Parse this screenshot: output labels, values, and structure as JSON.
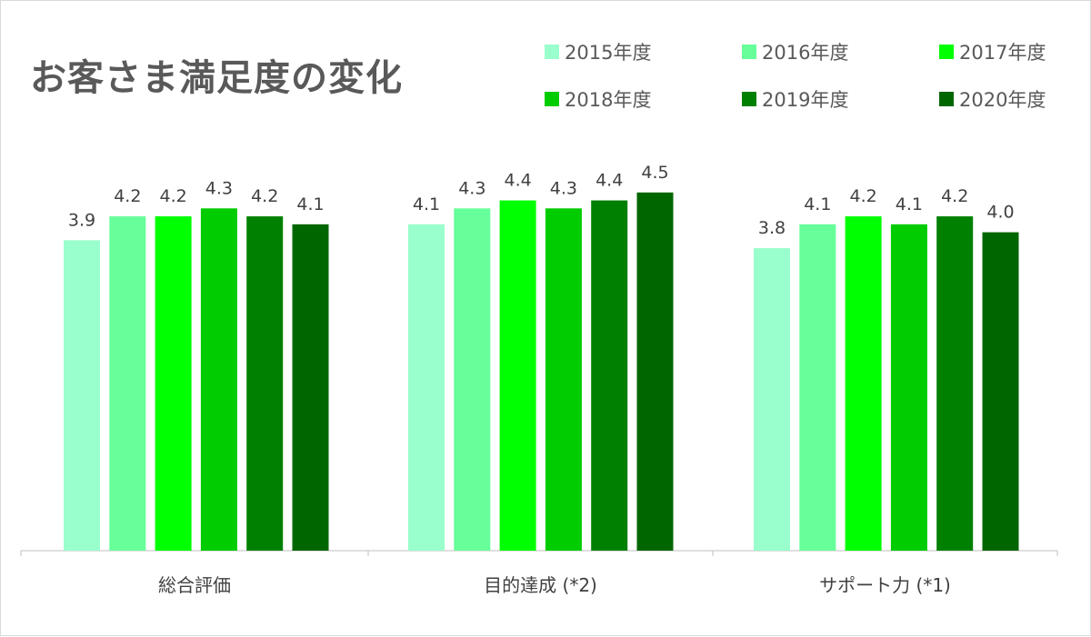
{
  "chart_data": {
    "type": "bar",
    "title": "お客さま満足度の変化",
    "categories": [
      "総合評価",
      "目的達成 (*2)",
      "サポート力 (*1)"
    ],
    "series": [
      {
        "name": "2015年度",
        "color": "#99FFCC",
        "values": [
          3.9,
          4.1,
          3.8
        ]
      },
      {
        "name": "2016年度",
        "color": "#66FF99",
        "values": [
          4.2,
          4.3,
          4.1
        ]
      },
      {
        "name": "2017年度",
        "color": "#00FF00",
        "values": [
          4.2,
          4.4,
          4.2
        ]
      },
      {
        "name": "2018年度",
        "color": "#00CC00",
        "values": [
          4.3,
          4.3,
          4.1
        ]
      },
      {
        "name": "2019年度",
        "color": "#008000",
        "values": [
          4.2,
          4.4,
          4.2
        ]
      },
      {
        "name": "2020年度",
        "color": "#006600",
        "values": [
          4.1,
          4.5,
          4.0
        ]
      }
    ],
    "value_labels": [
      [
        "3.9",
        "4.2",
        "4.2",
        "4.3",
        "4.2",
        "4.1"
      ],
      [
        "4.1",
        "4.3",
        "4.4",
        "4.3",
        "4.4",
        "4.5"
      ],
      [
        "3.8",
        "4.1",
        "4.2",
        "4.1",
        "4.2",
        "4.0"
      ]
    ],
    "legend_position": "top-right",
    "grid": false,
    "ylim": [
      0,
      5
    ],
    "xlabel": "",
    "ylabel": ""
  }
}
